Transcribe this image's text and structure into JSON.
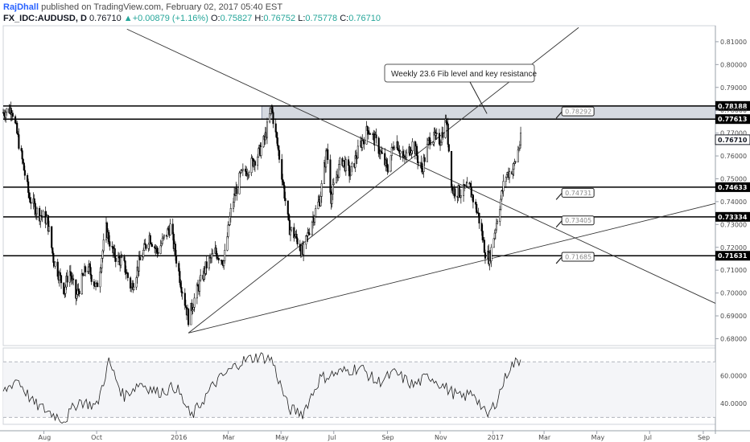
{
  "header": {
    "author": "RajDhall",
    "published": " published on TradingView.com, February 02, 2017 05:40 EST",
    "symbol": "FX_IDC:AUDUSD, D",
    "last": "0.76710",
    "change": "+0.00879 (+1.16%)",
    "ohlc": [
      {
        "key": "O:",
        "val": "0.75827"
      },
      {
        "key": "H:",
        "val": "0.76752"
      },
      {
        "key": "L:",
        "val": "0.75778"
      },
      {
        "key": "C:",
        "val": "0.76710"
      }
    ]
  },
  "colors": {
    "bg": "#ffffff",
    "candle": "#000000",
    "line": "#000000",
    "zone": "#d5d9e0",
    "badge": "#000000",
    "grid": "#eeeeee"
  },
  "chart_data": {
    "type": "candlestick",
    "symbol": "FX_IDC:AUDUSD",
    "interval": "D",
    "ylim": [
      0.677,
      0.817
    ],
    "y_ticks": [
      "0.81000",
      "0.80000",
      "0.79000",
      "0.78000",
      "0.77000",
      "0.76000",
      "0.75000",
      "0.74000",
      "0.73000",
      "0.72000",
      "0.71000",
      "0.70000",
      "0.69000",
      "0.68000"
    ],
    "x_range": [
      "2015-06-15",
      "2017-09-15"
    ],
    "x_ticks": [
      {
        "label": "Aug",
        "date": "2015-08-01"
      },
      {
        "label": "Oct",
        "date": "2015-10-01"
      },
      {
        "label": "2016",
        "date": "2016-01-01"
      },
      {
        "label": "Mar",
        "date": "2016-03-01"
      },
      {
        "label": "May",
        "date": "2016-05-01"
      },
      {
        "label": "Jul",
        "date": "2016-07-01"
      },
      {
        "label": "Sep",
        "date": "2016-09-01"
      },
      {
        "label": "Nov",
        "date": "2016-11-01"
      },
      {
        "label": "2017",
        "date": "2017-01-01"
      },
      {
        "label": "Mar",
        "date": "2017-03-01"
      },
      {
        "label": "May",
        "date": "2017-05-01"
      },
      {
        "label": "Jul",
        "date": "2017-07-01"
      },
      {
        "label": "Sep",
        "date": "2017-09-01"
      }
    ],
    "price_path": [
      [
        "2015-06-15",
        0.779
      ],
      [
        "2015-06-25",
        0.781
      ],
      [
        "2015-07-05",
        0.762
      ],
      [
        "2015-07-15",
        0.742
      ],
      [
        "2015-07-25",
        0.735
      ],
      [
        "2015-08-05",
        0.732
      ],
      [
        "2015-08-12",
        0.715
      ],
      [
        "2015-08-25",
        0.701
      ],
      [
        "2015-08-30",
        0.711
      ],
      [
        "2015-09-07",
        0.698
      ],
      [
        "2015-09-20",
        0.712
      ],
      [
        "2015-10-01",
        0.702
      ],
      [
        "2015-10-12",
        0.728
      ],
      [
        "2015-10-20",
        0.717
      ],
      [
        "2015-11-01",
        0.713
      ],
      [
        "2015-11-10",
        0.702
      ],
      [
        "2015-11-20",
        0.714
      ],
      [
        "2015-12-01",
        0.725
      ],
      [
        "2015-12-10",
        0.718
      ],
      [
        "2015-12-25",
        0.729
      ],
      [
        "2016-01-06",
        0.705
      ],
      [
        "2016-01-15",
        0.689
      ],
      [
        "2016-01-25",
        0.701
      ],
      [
        "2016-02-05",
        0.712
      ],
      [
        "2016-02-15",
        0.718
      ],
      [
        "2016-02-25",
        0.714
      ],
      [
        "2016-03-05",
        0.738
      ],
      [
        "2016-03-15",
        0.751
      ],
      [
        "2016-03-25",
        0.755
      ],
      [
        "2016-04-05",
        0.761
      ],
      [
        "2016-04-12",
        0.767
      ],
      [
        "2016-04-20",
        0.781
      ],
      [
        "2016-05-01",
        0.755
      ],
      [
        "2016-05-10",
        0.729
      ],
      [
        "2016-05-20",
        0.723
      ],
      [
        "2016-05-26",
        0.717
      ],
      [
        "2016-06-05",
        0.731
      ],
      [
        "2016-06-15",
        0.741
      ],
      [
        "2016-06-23",
        0.763
      ],
      [
        "2016-06-28",
        0.742
      ],
      [
        "2016-07-10",
        0.759
      ],
      [
        "2016-07-20",
        0.752
      ],
      [
        "2016-08-01",
        0.765
      ],
      [
        "2016-08-10",
        0.772
      ],
      [
        "2016-08-20",
        0.765
      ],
      [
        "2016-09-01",
        0.754
      ],
      [
        "2016-09-10",
        0.768
      ],
      [
        "2016-09-20",
        0.758
      ],
      [
        "2016-10-01",
        0.766
      ],
      [
        "2016-10-10",
        0.753
      ],
      [
        "2016-10-20",
        0.768
      ],
      [
        "2016-11-01",
        0.767
      ],
      [
        "2016-11-08",
        0.776
      ],
      [
        "2016-11-15",
        0.745
      ],
      [
        "2016-11-25",
        0.744
      ],
      [
        "2016-12-05",
        0.746
      ],
      [
        "2016-12-15",
        0.734
      ],
      [
        "2016-12-23",
        0.718
      ],
      [
        "2016-12-28",
        0.715
      ],
      [
        "2017-01-05",
        0.731
      ],
      [
        "2017-01-15",
        0.751
      ],
      [
        "2017-01-25",
        0.755
      ],
      [
        "2017-02-02",
        0.767
      ]
    ],
    "rsi_path": [
      [
        "2015-06-15",
        48
      ],
      [
        "2015-07-01",
        58
      ],
      [
        "2015-07-20",
        40
      ],
      [
        "2015-08-10",
        33
      ],
      [
        "2015-08-25",
        28
      ],
      [
        "2015-09-10",
        42
      ],
      [
        "2015-10-01",
        38
      ],
      [
        "2015-10-15",
        70
      ],
      [
        "2015-11-01",
        45
      ],
      [
        "2015-11-20",
        55
      ],
      [
        "2015-12-10",
        48
      ],
      [
        "2016-01-01",
        52
      ],
      [
        "2016-01-18",
        30
      ],
      [
        "2016-02-15",
        55
      ],
      [
        "2016-03-15",
        70
      ],
      [
        "2016-04-05",
        74
      ],
      [
        "2016-04-20",
        72
      ],
      [
        "2016-05-10",
        36
      ],
      [
        "2016-05-26",
        33
      ],
      [
        "2016-06-15",
        58
      ],
      [
        "2016-07-05",
        62
      ],
      [
        "2016-08-01",
        66
      ],
      [
        "2016-08-20",
        55
      ],
      [
        "2016-09-10",
        62
      ],
      [
        "2016-10-01",
        53
      ],
      [
        "2016-10-20",
        60
      ],
      [
        "2016-11-10",
        50
      ],
      [
        "2016-11-25",
        44
      ],
      [
        "2016-12-10",
        48
      ],
      [
        "2016-12-25",
        30
      ],
      [
        "2017-01-05",
        42
      ],
      [
        "2017-01-20",
        66
      ],
      [
        "2017-02-02",
        72
      ]
    ],
    "rsi_ylim": [
      25,
      80
    ],
    "rsi_ticks": [
      "60.0000",
      "40.0000"
    ],
    "rsi_bands": [
      70,
      30
    ],
    "horizontal_levels": [
      {
        "label": "0.78188",
        "value": 0.78188
      },
      {
        "label": "0.77613",
        "value": 0.77613
      },
      {
        "label": "0.74633",
        "value": 0.74633
      },
      {
        "label": "0.73334",
        "value": 0.73334
      },
      {
        "label": "0.71631",
        "value": 0.71631
      }
    ],
    "last_price": {
      "label": "0.76710",
      "value": 0.7671
    },
    "resistance_zone": {
      "from": "2016-04-20",
      "top": 0.78188,
      "bottom": 0.77613
    },
    "trendlines": [
      {
        "p1": [
          "2016-01-15",
          0.6825
        ],
        "p2": [
          "2017-04-10",
          0.8162
        ]
      },
      {
        "p1": [
          "2016-01-15",
          0.6825
        ],
        "p2": [
          "2017-09-15",
          0.7392
        ]
      },
      {
        "p1": [
          "2015-11-05",
          0.8155
        ],
        "p2": [
          "2017-09-15",
          0.6955
        ]
      }
    ],
    "price_labels": [
      {
        "label": "0.78292",
        "anchor": [
          "2017-03-15",
          0.7765
        ]
      },
      {
        "label": "0.74731",
        "anchor": [
          "2017-03-15",
          0.7409
        ]
      },
      {
        "label": "0.73405",
        "anchor": [
          "2017-03-15",
          0.7288
        ]
      },
      {
        "label": "0.71685",
        "anchor": [
          "2017-03-15",
          0.7129
        ]
      }
    ],
    "annotation": {
      "text": "Weekly 23.6 Fib level and key resistance",
      "arrow_to": [
        "2016-12-25",
        0.7785
      ]
    }
  }
}
